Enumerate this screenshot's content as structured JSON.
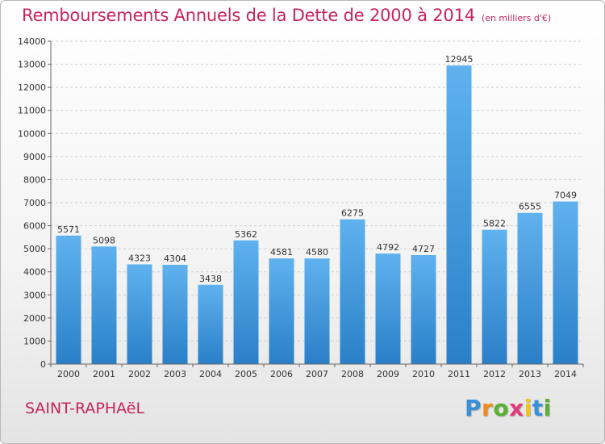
{
  "title": "Remboursements Annuels de la Dette de 2000 à 2014",
  "subtitle": "(en milliers d'€)",
  "city": "SAINT-RAPHAëL",
  "logo": {
    "text": "Proxiti",
    "letters": [
      {
        "ch": "P",
        "color": "#3a8fd9"
      },
      {
        "ch": "r",
        "color": "#f08a1c"
      },
      {
        "ch": "o",
        "color": "#5ab033"
      },
      {
        "ch": "x",
        "color": "#e23b7a"
      },
      {
        "ch": "i",
        "color": "#f0c419"
      },
      {
        "ch": "t",
        "color": "#3a8fd9"
      },
      {
        "ch": "i",
        "color": "#5ab033"
      }
    ]
  },
  "chart_data": {
    "type": "bar",
    "categories": [
      "2000",
      "2001",
      "2002",
      "2003",
      "2004",
      "2005",
      "2006",
      "2007",
      "2008",
      "2009",
      "2010",
      "2011",
      "2012",
      "2013",
      "2014"
    ],
    "values": [
      5571,
      5098,
      4323,
      4304,
      3438,
      5362,
      4581,
      4580,
      6275,
      4792,
      4727,
      12945,
      5822,
      6555,
      7049
    ],
    "ylim": [
      0,
      14000
    ],
    "yticks": [
      0,
      1000,
      2000,
      3000,
      4000,
      5000,
      6000,
      7000,
      8000,
      9000,
      10000,
      11000,
      12000,
      13000,
      14000
    ],
    "grid": true,
    "bar_color": "#4a9fe0",
    "label_color": "#333333"
  }
}
